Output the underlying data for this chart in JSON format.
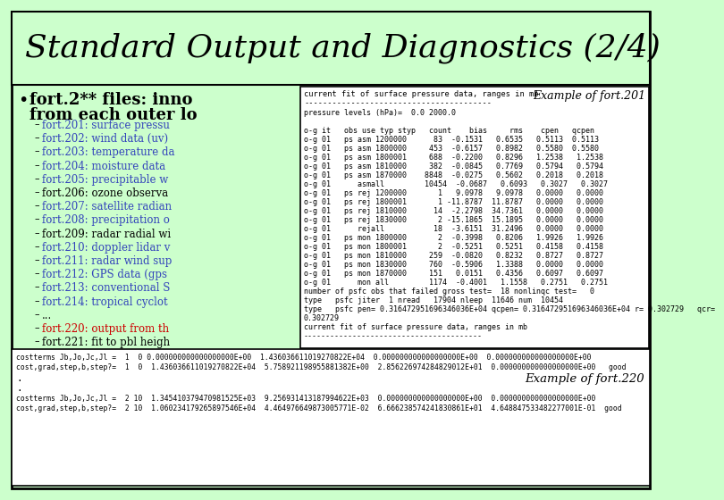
{
  "title": "Standard Output and Diagnostics (2/4)",
  "bg_color": "#ccffcc",
  "border_color": "#000000",
  "bullet_header_line1": "fort.2** files: inno",
  "bullet_header_line2": "from each outer lo",
  "bullet_items": [
    "fort.201: surface pressu",
    "fort.202: wind data (uv)",
    "fort.203: temperature da",
    "fort.204: moisture data",
    "fort.205: precipitable w",
    "fort.206: ozone observa",
    "fort.207: satellite radian",
    "fort.208: precipitation o",
    "fort.209: radar radial wi",
    "fort.210: doppler lidar v",
    "fort.211: radar wind sup",
    "fort.212: GPS data (gps",
    "fort.213: conventional S",
    "fort.214: tropical cyclot",
    "...",
    "fort.220: output from th",
    "fort.221: fit to pbl heigh"
  ],
  "bullet_blue_indices": [
    0,
    1,
    2,
    3,
    4,
    6,
    7,
    9,
    10,
    11,
    12,
    13
  ],
  "bullet_red_indices": [
    15
  ],
  "example_201_label": "Example of fort.201",
  "box1_title_line": "current fit of surface pressure data, ranges in mb",
  "box1_dashes": "----------------------------------------",
  "box1_lines": [
    "pressure levels (hPa)=  0.0 2000.0",
    "",
    "o-g it   obs use typ styp   count    bias     rms    cpen   qcpen",
    "o-g 01   ps asm 1200000      83  -0.1531   0.6535   0.5113  0.5113",
    "o-g 01   ps asm 1800000     453  -0.6157   0.8982   0.5580  0.5580",
    "o-g 01   ps asm 1800001     688  -0.2200   0.8296   1.2538   1.2538",
    "o-g 01   ps asm 1810000     382  -0.0845   0.7769   0.5794   0.5794",
    "o-g 01   ps asm 1870000    8848  -0.0275   0.5602   0.2018   0.2018",
    "o-g 01      asmall         10454  -0.0687   0.6093   0.3027   0.3027",
    "o-g 01   ps rej 1200000       1   9.0978   9.0978   0.0000   0.0000",
    "o-g 01   ps rej 1800001       1 -11.8787  11.8787   0.0000   0.0000",
    "o-g 01   ps rej 1810000      14  -2.2798  34.7361   0.0000   0.0000",
    "o-g 01   ps rej 1830000       2 -15.1865  15.1895   0.0000   0.0000",
    "o-g 01      rejall           18  -3.6151  31.2496   0.0000   0.0000",
    "o-g 01   ps mon 1800000       2  -0.3998   0.8206   1.9926   1.9926",
    "o-g 01   ps mon 1800001       2  -0.5251   0.5251   0.4158   0.4158",
    "o-g 01   ps mon 1810000     259  -0.0820   0.8232   0.8727   0.8727",
    "o-g 01   ps mon 1830000     760  -0.5906   1.3388   0.0000   0.0000",
    "o-g 01   ps mon 1870000     151   0.0151   0.4356   0.6097   0.6097",
    "o-g 01      mon all         1174  -0.4001   1.1558   0.2751   0.2751",
    "number of psfc obs that failed gross test=  18 nonlinqc test=   0",
    "type   psfc jiter  1 nread   17904 nleep  11646 num  10454",
    "type   psfc pen= 0.316472951696346036E+04 qcpen= 0.316472951696346036E+04 r= 0.302729   qcr=",
    "0.302729",
    "current fit of surface pressure data, ranges in mb",
    "----------------------------------------"
  ],
  "example_220_label": "Example of fort.220",
  "box2_line1": "costterms Jb,Jo,Jc,Jl =  1  0 0.000000000000000000E+00  1.436036611019270822E+04  0.000000000000000000E+00  0.000000000000000000E+00",
  "box2_line2": "cost,grad,step,b,step?=  1  0  1.436036611019270822E+04  5.758921198955881382E+00  2.856226974284829012E+01  0.000000000000000000E+00   good",
  "box2_line3": "costterms Jb,Jo,Jc,Jl =  2 10  1.345410379470981525E+03  9.256931413187994622E+03  0.000000000000000000E+00  0.000000000000000000E+00",
  "box2_line4": "cost,grad,step,b,step?=  2 10  1.060234179265897546E+04  4.464976649873005771E-02  6.666238574241830861E+01  4.648847533482277001E-01  good"
}
